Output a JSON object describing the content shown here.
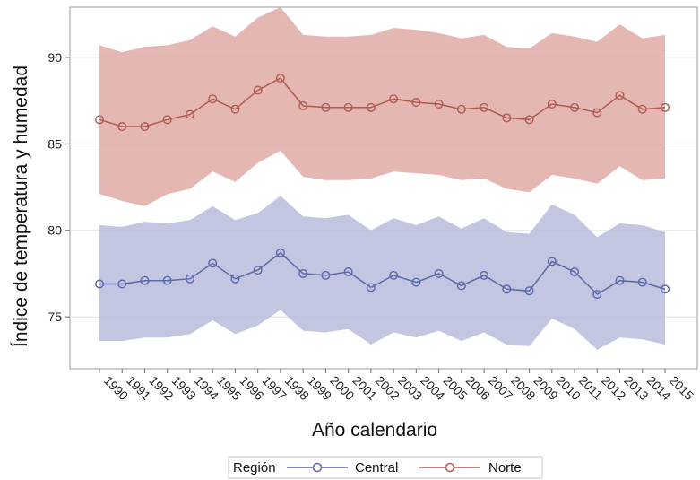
{
  "chart_data": {
    "type": "line",
    "xlabel": "Año calendario",
    "ylabel": "Índice de temperatura y humedad",
    "x": [
      1990,
      1991,
      1992,
      1993,
      1994,
      1995,
      1996,
      1997,
      1998,
      1999,
      2000,
      2001,
      2002,
      2003,
      2004,
      2005,
      2006,
      2007,
      2008,
      2009,
      2010,
      2011,
      2012,
      2013,
      2014,
      2015
    ],
    "ylim": [
      72,
      92.9
    ],
    "yticks": [
      75,
      80,
      85,
      90
    ],
    "grid": true,
    "legend": {
      "title": "Región",
      "position": "bottom"
    },
    "series": [
      {
        "name": "Central",
        "color": "#5a68a8",
        "band_color": "#b7bcdb",
        "values": [
          76.9,
          76.9,
          77.1,
          77.1,
          77.2,
          78.1,
          77.2,
          77.7,
          78.7,
          77.5,
          77.4,
          77.6,
          76.7,
          77.4,
          77.0,
          77.5,
          76.8,
          77.4,
          76.6,
          76.5,
          78.2,
          77.6,
          76.3,
          77.1,
          77.0,
          76.6
        ],
        "upper": [
          80.3,
          80.2,
          80.5,
          80.4,
          80.6,
          81.4,
          80.6,
          81.0,
          82.0,
          80.8,
          80.7,
          80.9,
          80.0,
          80.7,
          80.3,
          80.8,
          80.1,
          80.7,
          79.9,
          79.8,
          81.5,
          80.9,
          79.6,
          80.4,
          80.3,
          79.9
        ],
        "lower": [
          73.6,
          73.6,
          73.8,
          73.8,
          74.0,
          74.8,
          74.0,
          74.5,
          75.4,
          74.2,
          74.1,
          74.3,
          73.4,
          74.1,
          73.8,
          74.2,
          73.6,
          74.1,
          73.4,
          73.3,
          74.9,
          74.3,
          73.1,
          73.8,
          73.7,
          73.4
        ]
      },
      {
        "name": "Norte",
        "color": "#b05a50",
        "band_color": "#dfaaa6",
        "values": [
          86.4,
          86.0,
          86.0,
          86.4,
          86.7,
          87.6,
          87.0,
          88.1,
          88.8,
          87.2,
          87.1,
          87.1,
          87.1,
          87.6,
          87.4,
          87.3,
          87.0,
          87.1,
          86.5,
          86.4,
          87.3,
          87.1,
          86.8,
          87.8,
          87.0,
          87.1
        ],
        "upper": [
          90.7,
          90.3,
          90.6,
          90.7,
          91.0,
          91.8,
          91.2,
          92.3,
          92.9,
          91.3,
          91.2,
          91.2,
          91.3,
          91.7,
          91.6,
          91.4,
          91.1,
          91.3,
          90.6,
          90.5,
          91.4,
          91.2,
          90.9,
          91.9,
          91.1,
          91.3
        ],
        "lower": [
          82.1,
          81.7,
          81.4,
          82.1,
          82.4,
          83.4,
          82.8,
          83.9,
          84.6,
          83.1,
          82.9,
          82.9,
          83.0,
          83.4,
          83.3,
          83.2,
          82.9,
          83.0,
          82.4,
          82.2,
          83.2,
          83.0,
          82.7,
          83.7,
          82.9,
          83.0
        ]
      }
    ]
  }
}
